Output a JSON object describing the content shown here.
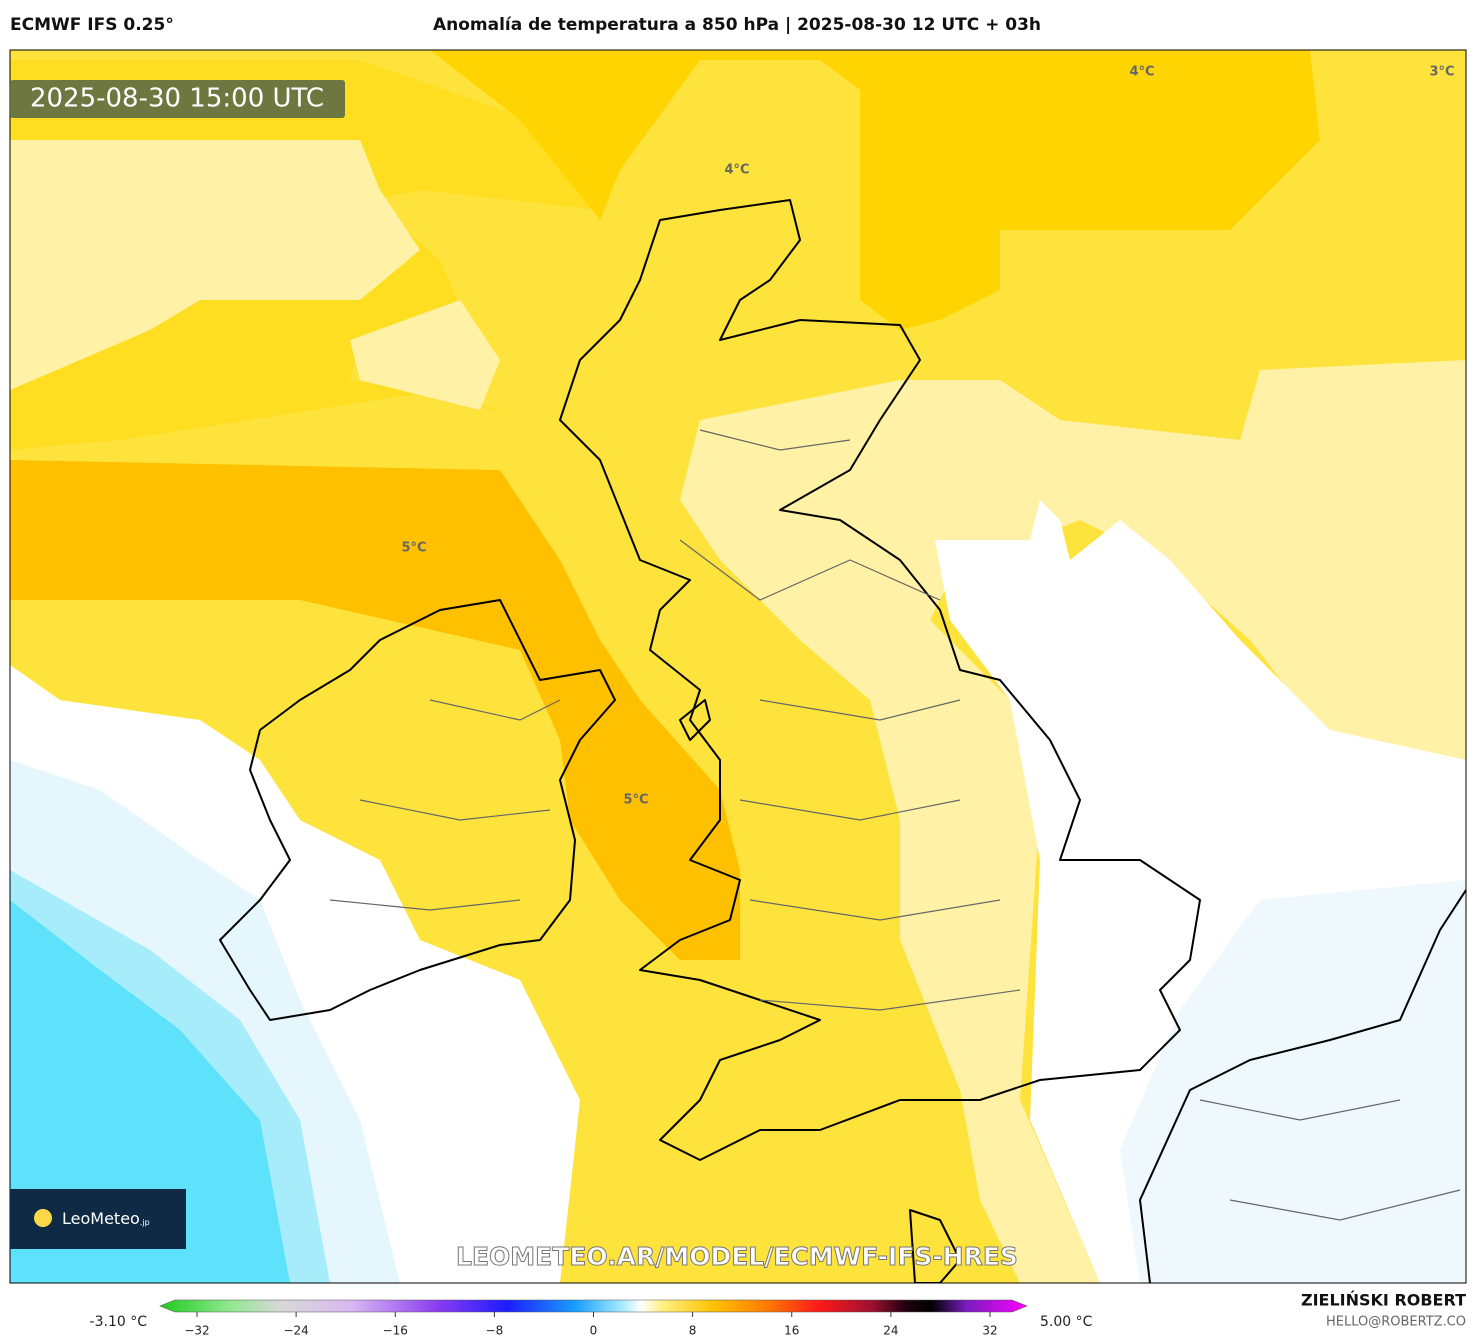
{
  "header": {
    "model": "ECMWF IFS 0.25°",
    "title": "Anomalía de temperatura a 850 hPa | 2025-08-30 12 UTC + 03h"
  },
  "valid_time": "2025-08-30 15:00 UTC",
  "contour_labels": [
    "4°C",
    "3°C",
    "4°C",
    "5°C",
    "5°C"
  ],
  "logo": {
    "brand": "LeoMeteo",
    "suffix": ".jp"
  },
  "watermark": "LEOMETEO.AR/MODEL/ECMWF-IFS-HRES",
  "colorbar": {
    "min_label": "-3.10 °C",
    "max_label": "5.00 °C",
    "ticks": [
      {
        "value": -32,
        "label": "−32"
      },
      {
        "value": -24,
        "label": "−24"
      },
      {
        "value": -16,
        "label": "−16"
      },
      {
        "value": -8,
        "label": "−8"
      },
      0,
      8,
      16,
      24,
      32
    ]
  },
  "footer": {
    "author": "ZIELIŃSKI ROBERT",
    "email": "HELLO@ROBERTZ.CO"
  }
}
